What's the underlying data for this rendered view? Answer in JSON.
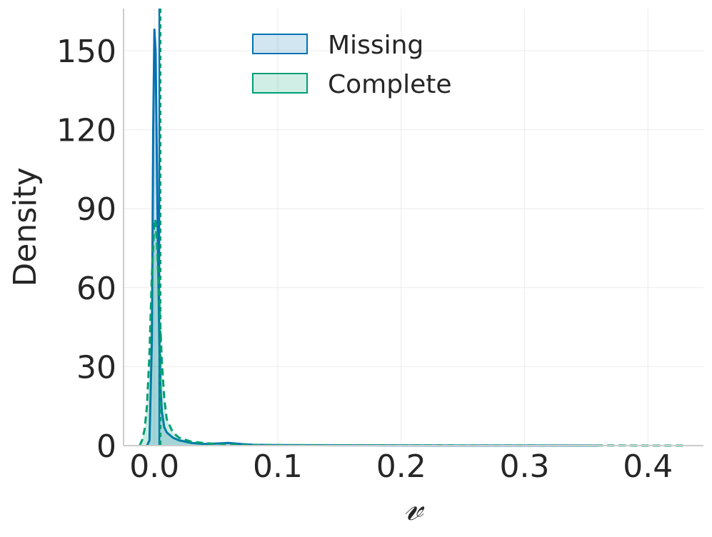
{
  "chart_data": {
    "type": "area",
    "title": "",
    "xlabel": "𝓋",
    "ylabel": "Density",
    "xlim": [
      -0.025,
      0.445
    ],
    "ylim": [
      0,
      166
    ],
    "xticks": [
      0.0,
      0.1,
      0.2,
      0.3,
      0.4
    ],
    "xtick_labels": [
      "0.0",
      "0.1",
      "0.2",
      "0.3",
      "0.4"
    ],
    "yticks": [
      0,
      30,
      60,
      90,
      120,
      150
    ],
    "ytick_labels": [
      "0",
      "30",
      "60",
      "90",
      "120",
      "150"
    ],
    "grid": true,
    "legend_position": "top",
    "series": [
      {
        "name": "Missing",
        "color": "#0072B2",
        "line_style": "solid",
        "mean": 0.004,
        "x": [
          -0.006,
          -0.004,
          -0.002,
          -0.001,
          0.0,
          0.001,
          0.002,
          0.003,
          0.004,
          0.005,
          0.006,
          0.008,
          0.01,
          0.015,
          0.02,
          0.03,
          0.04,
          0.05,
          0.06,
          0.07,
          0.08,
          0.1,
          0.15,
          0.2,
          0.3,
          0.36
        ],
        "y": [
          0,
          2,
          40,
          120,
          158,
          150,
          110,
          70,
          40,
          22,
          13,
          7,
          5,
          3,
          2,
          1,
          0.6,
          0.8,
          1,
          0.6,
          0.3,
          0.2,
          0.1,
          0.05,
          0.02,
          0
        ]
      },
      {
        "name": "Complete",
        "color": "#009E73",
        "line_style": "dashed",
        "mean": 0.005,
        "x": [
          -0.012,
          -0.01,
          -0.008,
          -0.006,
          -0.004,
          -0.002,
          0.0,
          0.001,
          0.002,
          0.004,
          0.006,
          0.008,
          0.01,
          0.015,
          0.02,
          0.03,
          0.04,
          0.05,
          0.06,
          0.08,
          0.1,
          0.2,
          0.3,
          0.43
        ],
        "y": [
          0,
          2,
          6,
          15,
          35,
          65,
          86,
          85,
          78,
          55,
          32,
          18,
          10,
          5,
          3,
          1.5,
          1,
          0.6,
          0.4,
          0.3,
          0.2,
          0.1,
          0.05,
          0
        ]
      }
    ]
  },
  "colors": {
    "text": "#262626",
    "grid": "#ebebeb",
    "axis": "#cccccc"
  }
}
